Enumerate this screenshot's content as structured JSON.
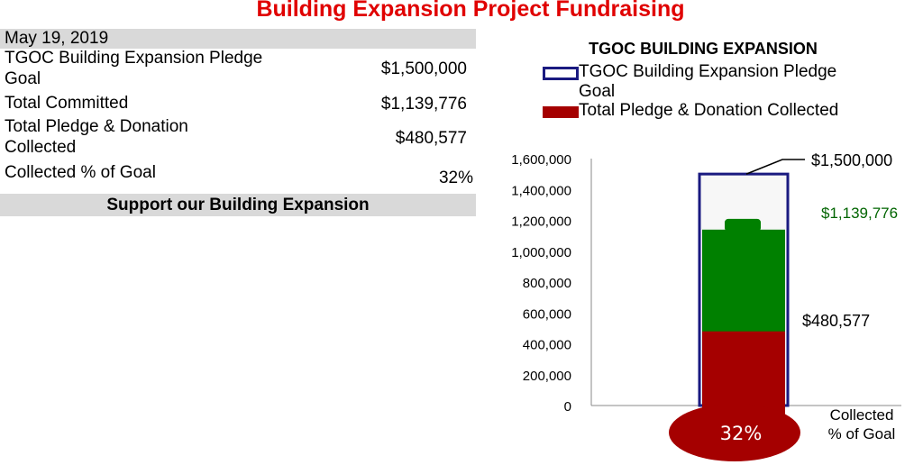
{
  "page_title": "Building Expansion Project Fundraising",
  "summary": {
    "date": "May 19, 2019",
    "goal_label_line1": "TGOC Building Expansion  Pledge",
    "goal_label_line2": "Goal",
    "goal_value": "$1,500,000",
    "committed_label": "Total Committed",
    "committed_value": "$1,139,776",
    "collected_label_line1": "Total Pledge & Donation",
    "collected_label_line2": "Collected",
    "collected_value": "$480,577",
    "pct_label": "Collected % of Goal",
    "pct_value": "32%",
    "support_banner": "Support our Building Expansion"
  },
  "chart_data": {
    "type": "bar",
    "title": "TGOC BUILDING EXPANSION",
    "legend": [
      {
        "label_line1": "TGOC Building Expansion  Pledge",
        "label_line2": "Goal",
        "color": "#1a1a80",
        "style": "outline"
      },
      {
        "label_line1": "Total Pledge & Donation Collected",
        "label_line2": "",
        "color": "#a50000",
        "style": "fill"
      }
    ],
    "legend_position": "top",
    "ylim": [
      0,
      1600000
    ],
    "yticks": [
      "1,600,000",
      "1,400,000",
      "1,200,000",
      "1,000,000",
      "800,000",
      "600,000",
      "400,000",
      "200,000",
      "0"
    ],
    "ytick_values": [
      1600000,
      1400000,
      1200000,
      1000000,
      800000,
      600000,
      400000,
      200000,
      0
    ],
    "goal": 1500000,
    "goal_label": "$1,500,000",
    "committed": 1139776,
    "committed_label": "$1,139,776",
    "collected": 480577,
    "collected_label": "$480,577",
    "bulb_label": "32%",
    "xlabel_line1": "Collected",
    "xlabel_line2": "% of Goal",
    "colors": {
      "goal_outline": "#1a1a80",
      "committed": "#008000",
      "collected": "#a50000",
      "committed_label": "#006400"
    }
  }
}
